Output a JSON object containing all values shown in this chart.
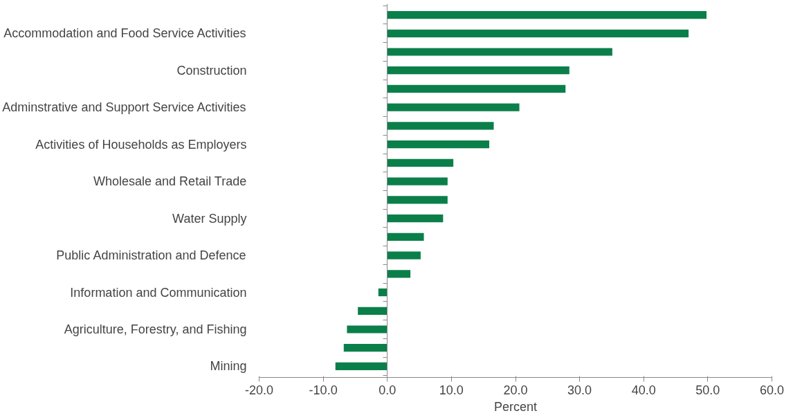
{
  "chart_data": {
    "type": "bar",
    "orientation": "horizontal",
    "xlabel": "Percent",
    "categories": [
      null,
      "Accommodation and Food Service Activities",
      null,
      "Construction",
      null,
      "Adminstrative and Support Service Activities",
      null,
      "Activities of Households as Employers",
      null,
      "Wholesale and Retail Trade",
      null,
      "Water Supply",
      null,
      "Public Administration and Defence",
      null,
      "Information and Communication",
      null,
      "Agriculture, Forestry, and Fishing",
      null,
      "Mining"
    ],
    "values": [
      49.8,
      47.0,
      35.1,
      28.4,
      27.8,
      20.6,
      16.6,
      15.9,
      10.3,
      9.4,
      9.4,
      8.7,
      5.7,
      5.2,
      3.6,
      -1.4,
      -4.6,
      -6.3,
      -6.8,
      -8.1
    ],
    "color": "#0b7f4a",
    "xlim": [
      -20,
      60
    ],
    "xticks": [
      {
        "value": -20,
        "label": "-20.0"
      },
      {
        "value": -10,
        "label": "-10.0"
      },
      {
        "value": 0,
        "label": "0.0"
      },
      {
        "value": 10,
        "label": "10.0"
      },
      {
        "value": 20,
        "label": "20.0"
      },
      {
        "value": 30,
        "label": "30.0"
      },
      {
        "value": 40,
        "label": "40.0"
      },
      {
        "value": 50,
        "label": "50.0"
      },
      {
        "value": 60,
        "label": "60.0"
      }
    ]
  }
}
